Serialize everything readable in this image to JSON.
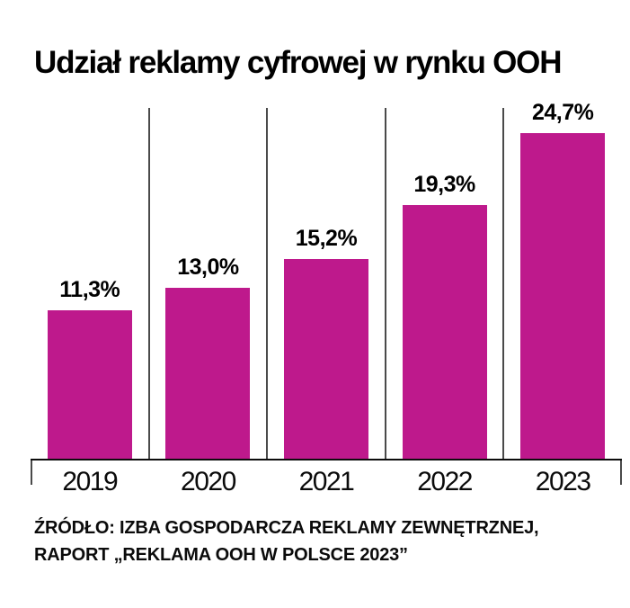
{
  "title": "Udział reklamy cyfrowej w rynku OOH",
  "chart_data": {
    "type": "bar",
    "title": "Udział reklamy cyfrowej w rynku OOH",
    "categories": [
      "2019",
      "2020",
      "2021",
      "2022",
      "2023"
    ],
    "values": [
      11.3,
      13.0,
      15.2,
      19.3,
      24.7
    ],
    "value_labels": [
      "11,3%",
      "13,0%",
      "15,2%",
      "19,3%",
      "24,7%"
    ],
    "xlabel": "",
    "ylabel": "",
    "ylim": [
      0,
      26.6
    ],
    "legend": "none",
    "grid": "vertical category separators only",
    "bar_color": "#be198c",
    "value_label_color": "#000000"
  },
  "source": {
    "line1": "ŹRÓDŁO: IZBA GOSPODARCZA REKLAMY ZEWNĘTRZNEJ,",
    "line2": "RAPORT „REKLAMA OOH W POLSCE 2023”"
  },
  "colors": {
    "background": "#ffffff",
    "bar": "#be198c",
    "axis": "#0d0d0d",
    "gridline": "#4a4a4a",
    "text": "#000000"
  }
}
